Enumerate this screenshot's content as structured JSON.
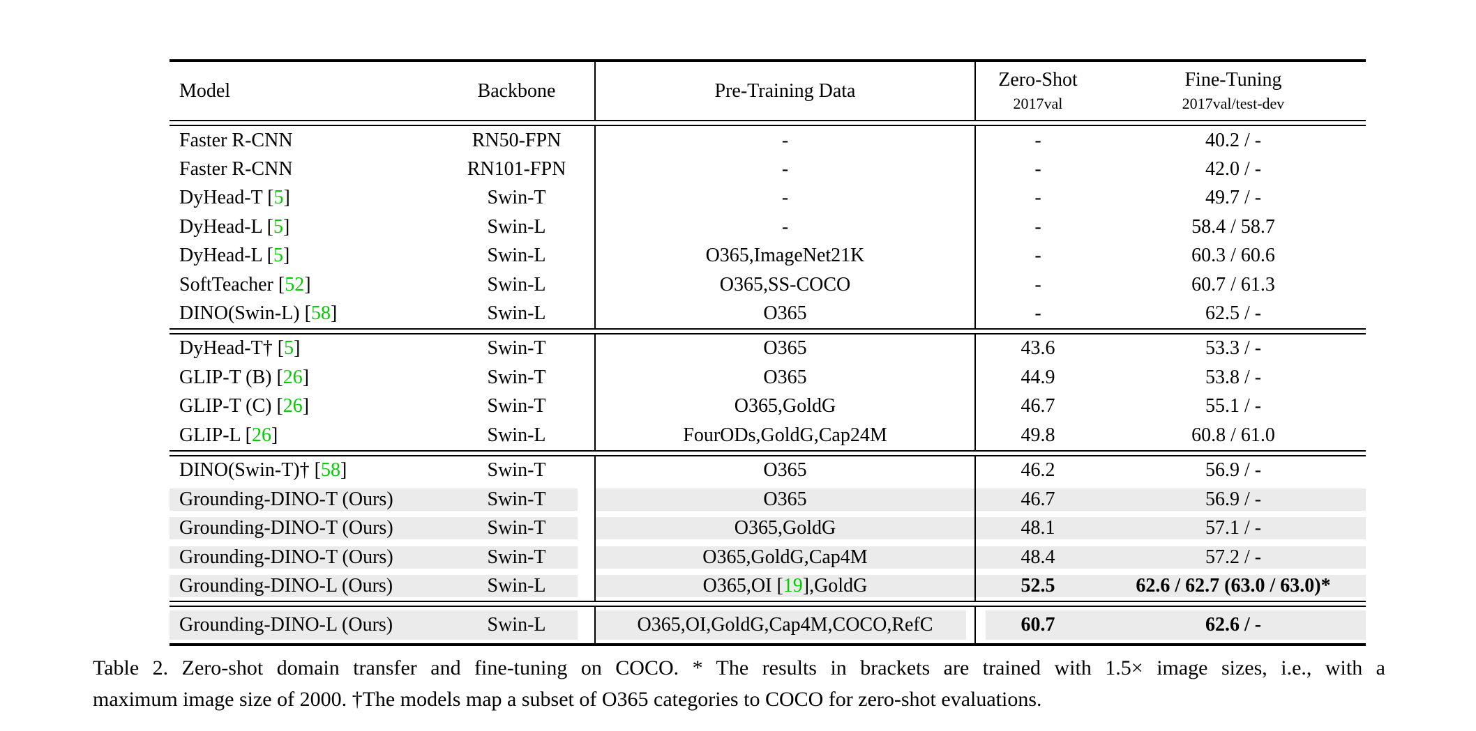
{
  "colors": {
    "citation": "#00cc00",
    "highlight": "#ebebeb",
    "text": "#000000"
  },
  "header": {
    "model": "Model",
    "backbone": "Backbone",
    "pretraining": "Pre-Training Data",
    "zero_shot": {
      "label": "Zero-Shot",
      "sub": "2017val"
    },
    "fine_tuning": {
      "label": "Fine-Tuning",
      "sub": "2017val/test-dev"
    }
  },
  "sections": [
    {
      "rows": [
        {
          "model": [
            "Faster R-CNN"
          ],
          "backbone": "RN50-FPN",
          "pretrain": [
            "-"
          ],
          "zeroshot": "-",
          "finetune": "40.2 / -",
          "hl": false,
          "bold": false
        },
        {
          "model": [
            "Faster R-CNN"
          ],
          "backbone": "RN101-FPN",
          "pretrain": [
            "-"
          ],
          "zeroshot": "-",
          "finetune": "42.0 / -",
          "hl": false,
          "bold": false
        },
        {
          "model": [
            "DyHead-T [",
            {
              "c": "5"
            },
            "]"
          ],
          "backbone": "Swin-T",
          "pretrain": [
            "-"
          ],
          "zeroshot": "-",
          "finetune": "49.7 / -",
          "hl": false,
          "bold": false
        },
        {
          "model": [
            "DyHead-L [",
            {
              "c": "5"
            },
            "]"
          ],
          "backbone": "Swin-L",
          "pretrain": [
            "-"
          ],
          "zeroshot": "-",
          "finetune": "58.4 / 58.7",
          "hl": false,
          "bold": false
        },
        {
          "model": [
            "DyHead-L [",
            {
              "c": "5"
            },
            "]"
          ],
          "backbone": "Swin-L",
          "pretrain": [
            "O365,ImageNet21K"
          ],
          "zeroshot": "-",
          "finetune": "60.3 / 60.6",
          "hl": false,
          "bold": false
        },
        {
          "model": [
            "SoftTeacher [",
            {
              "c": "52"
            },
            "]"
          ],
          "backbone": "Swin-L",
          "pretrain": [
            "O365,SS-COCO"
          ],
          "zeroshot": "-",
          "finetune": "60.7 / 61.3",
          "hl": false,
          "bold": false
        },
        {
          "model": [
            "DINO(Swin-L) [",
            {
              "c": "58"
            },
            "]"
          ],
          "backbone": "Swin-L",
          "pretrain": [
            "O365"
          ],
          "zeroshot": "-",
          "finetune": "62.5 / -",
          "hl": false,
          "bold": false
        }
      ]
    },
    {
      "rows": [
        {
          "model": [
            "DyHead-T† [",
            {
              "c": "5"
            },
            "]"
          ],
          "backbone": "Swin-T",
          "pretrain": [
            "O365"
          ],
          "zeroshot": "43.6",
          "finetune": "53.3 / -",
          "hl": false,
          "bold": false
        },
        {
          "model": [
            "GLIP-T (B) [",
            {
              "c": "26"
            },
            "]"
          ],
          "backbone": "Swin-T",
          "pretrain": [
            "O365"
          ],
          "zeroshot": "44.9",
          "finetune": "53.8 / -",
          "hl": false,
          "bold": false
        },
        {
          "model": [
            "GLIP-T (C) [",
            {
              "c": "26"
            },
            "]"
          ],
          "backbone": "Swin-T",
          "pretrain": [
            "O365,GoldG"
          ],
          "zeroshot": "46.7",
          "finetune": "55.1 / -",
          "hl": false,
          "bold": false
        },
        {
          "model": [
            "GLIP-L [",
            {
              "c": "26"
            },
            "]"
          ],
          "backbone": "Swin-L",
          "pretrain": [
            "FourODs,GoldG,Cap24M"
          ],
          "zeroshot": "49.8",
          "finetune": "60.8 / 61.0",
          "hl": false,
          "bold": false
        }
      ]
    },
    {
      "rows": [
        {
          "model": [
            "DINO(Swin-T)† [",
            {
              "c": "58"
            },
            "]"
          ],
          "backbone": "Swin-T",
          "pretrain": [
            "O365"
          ],
          "zeroshot": "46.2",
          "finetune": "56.9 / -",
          "hl": false,
          "bold": false
        },
        {
          "model": [
            "Grounding-DINO-T (Ours)"
          ],
          "backbone": "Swin-T",
          "pretrain": [
            "O365"
          ],
          "zeroshot": "46.7",
          "finetune": "56.9 / -",
          "hl": true,
          "bold": false
        },
        {
          "model": [
            "Grounding-DINO-T (Ours)"
          ],
          "backbone": "Swin-T",
          "pretrain": [
            "O365,GoldG"
          ],
          "zeroshot": "48.1",
          "finetune": "57.1 / -",
          "hl": true,
          "bold": false
        },
        {
          "model": [
            "Grounding-DINO-T (Ours)"
          ],
          "backbone": "Swin-T",
          "pretrain": [
            "O365,GoldG,Cap4M"
          ],
          "zeroshot": "48.4",
          "finetune": "57.2 / -",
          "hl": true,
          "bold": false
        },
        {
          "model": [
            "Grounding-DINO-L (Ours)"
          ],
          "backbone": "Swin-L",
          "pretrain": [
            "O365,OI [",
            {
              "c": "19"
            },
            "],GoldG"
          ],
          "zeroshot": "52.5",
          "finetune": "62.6 / 62.7 (63.0 / 63.0)*",
          "hl": true,
          "bold": true
        }
      ]
    },
    {
      "rows": [
        {
          "model": [
            "Grounding-DINO-L (Ours)"
          ],
          "backbone": "Swin-L",
          "pretrain": [
            "O365,OI,GoldG,Cap4M,COCO,RefC"
          ],
          "zeroshot": "60.7",
          "finetune": "62.6 / -",
          "hl": true,
          "bold": true
        }
      ]
    }
  ],
  "caption": {
    "line1": "Table 2.  Zero-shot domain transfer and fine-tuning on COCO. * The results in brackets are trained with 1.5× image sizes, i.e., with a",
    "line2": "maximum image size of 2000. †The models map a subset of O365 categories to COCO for zero-shot evaluations."
  }
}
